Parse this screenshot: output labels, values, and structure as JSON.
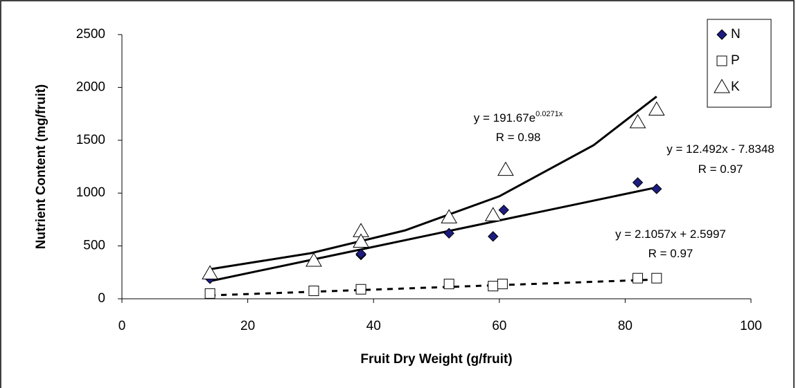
{
  "chart_data": {
    "type": "scatter",
    "xlabel": "Fruit Dry Weight (g/fruit)",
    "ylabel": "Nutrient Content (mg/fruit)",
    "xlim": [
      0,
      100
    ],
    "xticks": [
      0,
      20,
      40,
      60,
      80,
      100
    ],
    "ylim": [
      0,
      2500
    ],
    "yticks": [
      0,
      500,
      1000,
      1500,
      2000,
      2500
    ],
    "legend": "top-right",
    "series": [
      {
        "name": "N",
        "marker": "diamond",
        "color": "#1c1c80",
        "x": [
          14,
          38,
          38,
          52,
          59,
          60.7,
          82,
          85
        ],
        "values": [
          190,
          415,
          425,
          620,
          590,
          840,
          1100,
          1040
        ],
        "trend": {
          "style": "solid",
          "x": [
            14,
            85
          ],
          "values": [
            167,
            1054
          ]
        }
      },
      {
        "name": "P",
        "marker": "square",
        "color": "#000000",
        "x": [
          14,
          30.5,
          38,
          52,
          59,
          60.5,
          82,
          85
        ],
        "values": [
          50,
          75,
          90,
          140,
          120,
          140,
          195,
          195
        ],
        "trend": {
          "style": "dashed",
          "x": [
            14,
            85
          ],
          "values": [
            32,
            182
          ]
        }
      },
      {
        "name": "K",
        "marker": "triangle",
        "color": "#000000",
        "x": [
          14,
          30.5,
          38,
          38,
          52,
          59,
          61,
          82,
          85
        ],
        "values": [
          240,
          360,
          640,
          540,
          770,
          790,
          1220,
          1670,
          1790
        ],
        "trend": {
          "style": "solid",
          "x": [
            14,
            30,
            45,
            60,
            75,
            85
          ],
          "values": [
            280,
            431,
            647,
            970,
            1454,
            1914
          ]
        }
      }
    ],
    "annotations": [
      {
        "lines": [
          {
            "text": "y = 191.67e",
            "sup": "0.0271x"
          },
          {
            "text": "R = 0.98"
          }
        ]
      },
      {
        "lines": [
          {
            "text": "y = 12.492x - 7.8348"
          },
          {
            "text": "R = 0.97"
          }
        ]
      },
      {
        "lines": [
          {
            "text": "y = 2.1057x + 2.5997"
          },
          {
            "text": "R = 0.97"
          }
        ]
      }
    ]
  }
}
